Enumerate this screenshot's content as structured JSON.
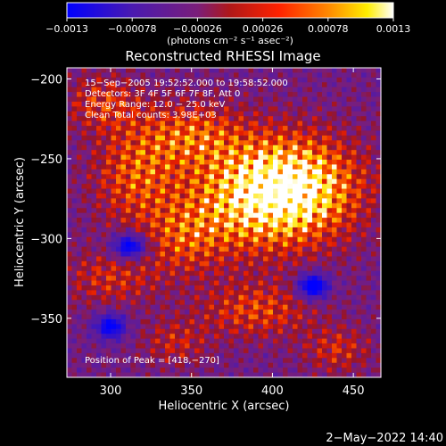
{
  "chart_data": {
    "type": "heatmap",
    "title": "Reconstructed RHESSI Image",
    "xlabel": "Heliocentric X (arcsec)",
    "ylabel": "Heliocentric Y (arcsec)",
    "xlim": [
      273,
      467
    ],
    "ylim": [
      -387,
      -193
    ],
    "x_ticks": [
      300,
      350,
      400,
      450
    ],
    "y_ticks": [
      -200,
      -250,
      -300,
      -350
    ],
    "x_tick_labels": [
      "300",
      "350",
      "400",
      "450"
    ],
    "y_tick_labels": [
      "−200",
      "−250",
      "−300",
      "−350"
    ],
    "colorbar": {
      "min": -0.0013,
      "max": 0.0013,
      "tick_values": [
        -0.0013,
        -0.00078,
        -0.00026,
        0.00026,
        0.00078,
        0.0013
      ],
      "tick_labels": [
        "−0.0013",
        "−0.00078",
        "−0.00026",
        "0.00026",
        "0.00078",
        "0.0013"
      ],
      "unit_label": "(photons cm⁻² s⁻¹ asec⁻²)",
      "colormap": "blue-purple-red-yellow-white"
    },
    "annotations": [
      "15−Sep−2005 19:52:52.000 to 19:58:52.000",
      "Detectors: 3F 4F 5F 6F 7F 8F, Att 0",
      "Energy Range: 12.0 − 25.0 keV",
      "Clean     Total counts: 3.98E+03"
    ],
    "peak_label": "Position of Peak = [418,−270]",
    "peak": {
      "x": 418,
      "y": -270
    },
    "emission_regions": [
      {
        "x": 415,
        "y": -268,
        "sx": 28,
        "sy": 22,
        "amp": 1.0
      },
      {
        "x": 385,
        "y": -275,
        "sx": 30,
        "sy": 24,
        "amp": 0.7
      },
      {
        "x": 350,
        "y": -235,
        "sx": 22,
        "sy": 14,
        "amp": 0.55
      },
      {
        "x": 315,
        "y": -260,
        "sx": 18,
        "sy": 22,
        "amp": 0.55
      },
      {
        "x": 345,
        "y": -300,
        "sx": 18,
        "sy": 16,
        "amp": 0.45
      },
      {
        "x": 300,
        "y": -325,
        "sx": 20,
        "sy": 12,
        "amp": 0.4
      },
      {
        "x": 390,
        "y": -345,
        "sx": 24,
        "sy": 12,
        "amp": 0.5
      },
      {
        "x": 295,
        "y": -215,
        "sx": 16,
        "sy": 12,
        "amp": 0.45
      },
      {
        "x": 440,
        "y": -370,
        "sx": 14,
        "sy": 10,
        "amp": 0.4
      },
      {
        "x": 340,
        "y": -365,
        "sx": 14,
        "sy": 10,
        "amp": 0.35
      }
    ],
    "negative_regions": [
      {
        "x": 312,
        "y": -305,
        "sx": 8,
        "sy": 6,
        "amp": 0.9
      },
      {
        "x": 425,
        "y": -330,
        "sx": 7,
        "sy": 6,
        "amp": 0.9
      },
      {
        "x": 300,
        "y": -355,
        "sx": 7,
        "sy": 6,
        "amp": 0.7
      }
    ]
  },
  "footer_timestamp": "2−May−2022 14:40"
}
